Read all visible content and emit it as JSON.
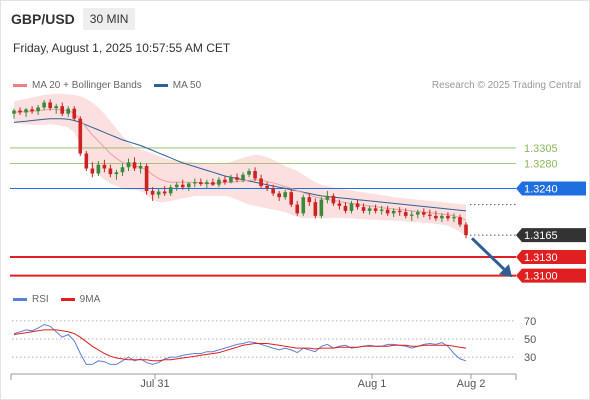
{
  "header": {
    "pair": "GBP/USD",
    "timeframe": "30 MIN"
  },
  "datetime": "Friday, August 1, 2025 10:57:55 AM CET",
  "legend": {
    "ma20": {
      "label": "MA 20 + Bollinger Bands",
      "color": "#f08080"
    },
    "ma50": {
      "label": "MA 50",
      "color": "#2f5f98"
    }
  },
  "credit": "Research © 2025 Trading Central",
  "rsi_legend": {
    "rsi": {
      "label": "RSI",
      "color": "#5b7fd6"
    },
    "ma": {
      "label": "9MA",
      "color": "#e02020"
    }
  },
  "colors": {
    "up": "#3a8a3a",
    "down": "#cc2222",
    "band": "#fbd6d6",
    "target": "#8ab85a",
    "pivot": "#1f6fe0",
    "support": "#e02020",
    "last": "#333333",
    "arrow": "#2f5f98"
  },
  "chart_data": [
    {
      "type": "candlestick",
      "x_tick_labels": [
        "Jul 31",
        "Aug 1",
        "Aug 2"
      ],
      "ylim": [
        1.3085,
        1.339
      ],
      "levels": [
        {
          "value": 1.3305,
          "label": "1.3305",
          "kind": "target"
        },
        {
          "value": 1.328,
          "label": "1.3280",
          "kind": "target"
        },
        {
          "value": 1.324,
          "label": "1.3240",
          "kind": "pivot"
        },
        {
          "value": 1.3165,
          "label": "1.3165",
          "kind": "last"
        },
        {
          "value": 1.313,
          "label": "1.3130",
          "kind": "support"
        },
        {
          "value": 1.31,
          "label": "1.3100",
          "kind": "support"
        }
      ],
      "candles": [
        [
          1.336,
          1.3368,
          1.3352,
          1.3365
        ],
        [
          1.3365,
          1.337,
          1.3358,
          1.3362
        ],
        [
          1.3362,
          1.3369,
          1.3355,
          1.3367
        ],
        [
          1.3367,
          1.3372,
          1.336,
          1.3364
        ],
        [
          1.3364,
          1.3374,
          1.3358,
          1.337
        ],
        [
          1.337,
          1.3382,
          1.3366,
          1.3378
        ],
        [
          1.3378,
          1.3383,
          1.3365,
          1.3369
        ],
        [
          1.3369,
          1.3376,
          1.336,
          1.3372
        ],
        [
          1.3372,
          1.3378,
          1.3356,
          1.336
        ],
        [
          1.336,
          1.3372,
          1.3355,
          1.3368
        ],
        [
          1.3368,
          1.3372,
          1.3348,
          1.3352
        ],
        [
          1.3352,
          1.3356,
          1.3292,
          1.3296
        ],
        [
          1.3296,
          1.33,
          1.3268,
          1.3272
        ],
        [
          1.3272,
          1.3282,
          1.3258,
          1.3264
        ],
        [
          1.3264,
          1.3284,
          1.326,
          1.3278
        ],
        [
          1.3278,
          1.3286,
          1.3266,
          1.3272
        ],
        [
          1.3272,
          1.3278,
          1.3258,
          1.3263
        ],
        [
          1.3263,
          1.327,
          1.3254,
          1.3266
        ],
        [
          1.3266,
          1.328,
          1.326,
          1.3274
        ],
        [
          1.3274,
          1.3288,
          1.3268,
          1.3282
        ],
        [
          1.3282,
          1.329,
          1.3268,
          1.3272
        ],
        [
          1.3272,
          1.3282,
          1.3264,
          1.3276
        ],
        [
          1.3276,
          1.328,
          1.323,
          1.3236
        ],
        [
          1.3236,
          1.3242,
          1.322,
          1.323
        ],
        [
          1.323,
          1.324,
          1.3224,
          1.3235
        ],
        [
          1.3235,
          1.3244,
          1.3228,
          1.3232
        ],
        [
          1.3232,
          1.3246,
          1.3228,
          1.3242
        ],
        [
          1.3242,
          1.325,
          1.3236,
          1.3246
        ],
        [
          1.3246,
          1.3254,
          1.3238,
          1.3242
        ],
        [
          1.3242,
          1.325,
          1.3236,
          1.3248
        ],
        [
          1.3248,
          1.3256,
          1.3242,
          1.325
        ],
        [
          1.325,
          1.3256,
          1.3244,
          1.3247
        ],
        [
          1.3247,
          1.3254,
          1.324,
          1.325
        ],
        [
          1.325,
          1.3256,
          1.3244,
          1.3246
        ],
        [
          1.3246,
          1.3258,
          1.3242,
          1.3254
        ],
        [
          1.3254,
          1.326,
          1.3246,
          1.325
        ],
        [
          1.325,
          1.3262,
          1.3248,
          1.3258
        ],
        [
          1.3258,
          1.3264,
          1.325,
          1.3254
        ],
        [
          1.3254,
          1.3266,
          1.325,
          1.3262
        ],
        [
          1.3262,
          1.3272,
          1.3258,
          1.3268
        ],
        [
          1.3268,
          1.3274,
          1.3252,
          1.3256
        ],
        [
          1.3256,
          1.3262,
          1.324,
          1.3244
        ],
        [
          1.3244,
          1.325,
          1.3236,
          1.324
        ],
        [
          1.324,
          1.3246,
          1.3228,
          1.3232
        ],
        [
          1.3232,
          1.3236,
          1.322,
          1.3226
        ],
        [
          1.3226,
          1.3238,
          1.3222,
          1.3234
        ],
        [
          1.3234,
          1.324,
          1.321,
          1.3214
        ],
        [
          1.3214,
          1.322,
          1.3196,
          1.32
        ],
        [
          1.32,
          1.323,
          1.3196,
          1.3226
        ],
        [
          1.3226,
          1.3232,
          1.3212,
          1.3218
        ],
        [
          1.3218,
          1.3224,
          1.3192,
          1.3196
        ],
        [
          1.3196,
          1.3226,
          1.3192,
          1.3222
        ],
        [
          1.3222,
          1.3236,
          1.3216,
          1.3228
        ],
        [
          1.3228,
          1.3232,
          1.3212,
          1.3216
        ],
        [
          1.3216,
          1.3222,
          1.3206,
          1.3212
        ],
        [
          1.3212,
          1.3218,
          1.32,
          1.3204
        ],
        [
          1.3204,
          1.322,
          1.32,
          1.3216
        ],
        [
          1.3216,
          1.3222,
          1.3206,
          1.321
        ],
        [
          1.321,
          1.3216,
          1.32,
          1.3204
        ],
        [
          1.3204,
          1.3212,
          1.3198,
          1.3208
        ],
        [
          1.3208,
          1.3214,
          1.32,
          1.3204
        ],
        [
          1.3204,
          1.3212,
          1.3198,
          1.3206
        ],
        [
          1.3206,
          1.3212,
          1.3196,
          1.32
        ],
        [
          1.32,
          1.3208,
          1.3194,
          1.3204
        ],
        [
          1.3204,
          1.321,
          1.3196,
          1.3202
        ],
        [
          1.3202,
          1.3208,
          1.3192,
          1.3196
        ],
        [
          1.3196,
          1.3204,
          1.3188,
          1.3198
        ],
        [
          1.3198,
          1.3206,
          1.3192,
          1.3202
        ],
        [
          1.3202,
          1.3208,
          1.3194,
          1.3198
        ],
        [
          1.3198,
          1.3206,
          1.319,
          1.3196
        ],
        [
          1.3196,
          1.3204,
          1.3188,
          1.3192
        ],
        [
          1.3192,
          1.32,
          1.3186,
          1.3196
        ],
        [
          1.3196,
          1.3202,
          1.3188,
          1.3192
        ],
        [
          1.3192,
          1.32,
          1.3186,
          1.3194
        ],
        [
          1.3194,
          1.3198,
          1.3178,
          1.3182
        ],
        [
          1.3182,
          1.3186,
          1.316,
          1.3165
        ]
      ],
      "ma20": [
        1.3362,
        1.3363,
        1.3363,
        1.3364,
        1.3365,
        1.3366,
        1.3367,
        1.3367,
        1.3366,
        1.3365,
        1.3361,
        1.335,
        1.3338,
        1.3326,
        1.3316,
        1.3306,
        1.3296,
        1.3288,
        1.3282,
        1.3278,
        1.3276,
        1.3274,
        1.327,
        1.3262,
        1.3256,
        1.3252,
        1.325,
        1.325,
        1.325,
        1.325,
        1.325,
        1.3249,
        1.3248,
        1.3248,
        1.3249,
        1.325,
        1.325,
        1.3251,
        1.3252,
        1.3253,
        1.3254,
        1.3253,
        1.3251,
        1.3249,
        1.3246,
        1.3243,
        1.324,
        1.3236,
        1.3233,
        1.323,
        1.3226,
        1.3224,
        1.3222,
        1.3221,
        1.3219,
        1.3217,
        1.3216,
        1.3214,
        1.3213,
        1.3212,
        1.3211,
        1.3209,
        1.3208,
        1.3207,
        1.3206,
        1.3205,
        1.3204,
        1.3203,
        1.3202,
        1.3201,
        1.32,
        1.3199,
        1.3198,
        1.3196,
        1.3193,
        1.3189
      ],
      "bb_upper": [
        1.338,
        1.3382,
        1.3384,
        1.3386,
        1.3388,
        1.339,
        1.3391,
        1.3392,
        1.3392,
        1.3391,
        1.339,
        1.3388,
        1.3384,
        1.3378,
        1.337,
        1.336,
        1.3348,
        1.3336,
        1.3324,
        1.3314,
        1.3306,
        1.3302,
        1.33,
        1.3296,
        1.3292,
        1.3288,
        1.3286,
        1.3285,
        1.3284,
        1.3283,
        1.3282,
        1.3281,
        1.328,
        1.328,
        1.328,
        1.3281,
        1.3283,
        1.3286,
        1.3289,
        1.3292,
        1.3294,
        1.3293,
        1.329,
        1.3286,
        1.3281,
        1.3276,
        1.3272,
        1.3268,
        1.3262,
        1.3256,
        1.325,
        1.3246,
        1.3244,
        1.3242,
        1.324,
        1.3238,
        1.3237,
        1.3235,
        1.3234,
        1.3232,
        1.3231,
        1.3229,
        1.3228,
        1.3226,
        1.3225,
        1.3224,
        1.3223,
        1.3222,
        1.3221,
        1.322,
        1.3219,
        1.3218,
        1.3217,
        1.3216,
        1.3215,
        1.3214
      ],
      "bb_lower": [
        1.3345,
        1.3344,
        1.3343,
        1.3342,
        1.3342,
        1.3342,
        1.3343,
        1.3342,
        1.334,
        1.3338,
        1.333,
        1.331,
        1.329,
        1.3274,
        1.3262,
        1.3254,
        1.3248,
        1.3244,
        1.324,
        1.3238,
        1.3238,
        1.3236,
        1.323,
        1.3222,
        1.3218,
        1.3218,
        1.322,
        1.3222,
        1.3224,
        1.3226,
        1.3228,
        1.3228,
        1.3228,
        1.3228,
        1.3228,
        1.3228,
        1.3226,
        1.3222,
        1.3218,
        1.3214,
        1.3212,
        1.321,
        1.3208,
        1.3206,
        1.3204,
        1.3202,
        1.3198,
        1.3194,
        1.3192,
        1.3192,
        1.3192,
        1.3192,
        1.3192,
        1.3193,
        1.3193,
        1.3192,
        1.3192,
        1.3191,
        1.3191,
        1.319,
        1.319,
        1.3189,
        1.3189,
        1.3188,
        1.3188,
        1.3187,
        1.3186,
        1.3186,
        1.3185,
        1.3184,
        1.3183,
        1.3182,
        1.318,
        1.3176,
        1.317,
        1.3163
      ],
      "ma50": [
        1.3346,
        1.3347,
        1.3348,
        1.3349,
        1.335,
        1.3351,
        1.3352,
        1.3352,
        1.3352,
        1.3351,
        1.3349,
        1.3346,
        1.3342,
        1.3338,
        1.3334,
        1.333,
        1.3326,
        1.3322,
        1.3318,
        1.3315,
        1.3312,
        1.3309,
        1.3305,
        1.3301,
        1.3297,
        1.3293,
        1.3289,
        1.3285,
        1.3281,
        1.3278,
        1.3275,
        1.3272,
        1.3269,
        1.3266,
        1.3263,
        1.326,
        1.3258,
        1.3256,
        1.3254,
        1.3252,
        1.325,
        1.3248,
        1.3246,
        1.3244,
        1.3242,
        1.324,
        1.3238,
        1.3236,
        1.3234,
        1.3232,
        1.323,
        1.3228,
        1.3227,
        1.3226,
        1.3225,
        1.3224,
        1.3223,
        1.3222,
        1.3221,
        1.322,
        1.3219,
        1.3218,
        1.3217,
        1.3216,
        1.3215,
        1.3214,
        1.3213,
        1.3212,
        1.3211,
        1.321,
        1.3209,
        1.3208,
        1.3207,
        1.3206,
        1.3205,
        1.3204
      ]
    },
    {
      "type": "line",
      "name": "RSI",
      "ylim": [
        18,
        82
      ],
      "y_ticks": [
        70,
        50,
        30
      ],
      "rsi": [
        56,
        58,
        60,
        59,
        62,
        66,
        64,
        58,
        52,
        55,
        48,
        34,
        22,
        22,
        26,
        25,
        22,
        22,
        26,
        30,
        26,
        28,
        24,
        22,
        24,
        28,
        30,
        30,
        32,
        33,
        34,
        34,
        36,
        36,
        38,
        40,
        42,
        44,
        45,
        47,
        46,
        44,
        42,
        40,
        38,
        40,
        38,
        35,
        40,
        38,
        36,
        42,
        44,
        40,
        42,
        43,
        40,
        41,
        42,
        43,
        42,
        42,
        44,
        44,
        43,
        42,
        40,
        42,
        44,
        45,
        44,
        46,
        42,
        34,
        28,
        26
      ],
      "rsi_ma": [
        55,
        56,
        57,
        58,
        59,
        60,
        60,
        60,
        59,
        58,
        56,
        52,
        47,
        42,
        38,
        34,
        31,
        29,
        28,
        27,
        27,
        27,
        27,
        26,
        26,
        27,
        27,
        28,
        29,
        30,
        31,
        32,
        33,
        34,
        35,
        37,
        39,
        41,
        43,
        44,
        45,
        45,
        45,
        44,
        43,
        42,
        41,
        40,
        40,
        40,
        39,
        40,
        40,
        40,
        41,
        41,
        41,
        41,
        42,
        42,
        42,
        42,
        42,
        43,
        43,
        43,
        42,
        42,
        43,
        43,
        43,
        43,
        43,
        42,
        41,
        40
      ]
    }
  ]
}
